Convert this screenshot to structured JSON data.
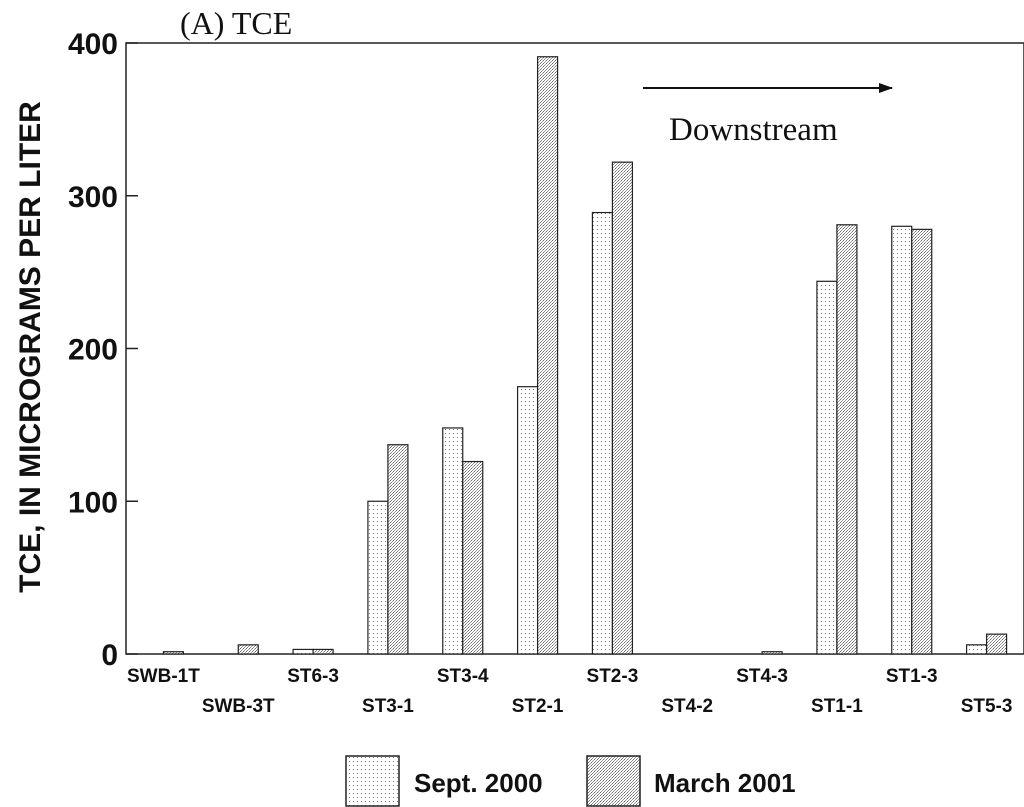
{
  "chart_data": {
    "type": "bar",
    "title": "(A) TCE",
    "ylabel": "TCE, IN MICROGRAMS PER LITER",
    "xlabel": "",
    "ylim": [
      0,
      400
    ],
    "yticks": [
      0,
      100,
      200,
      300,
      400
    ],
    "categories": [
      "SWB-1T",
      "SWB-3T",
      "ST6-3",
      "ST3-1",
      "ST3-4",
      "ST2-1",
      "ST2-3",
      "ST4-2",
      "ST4-3",
      "ST1-1",
      "ST1-3",
      "ST5-3"
    ],
    "series": [
      {
        "name": "Sept. 2000",
        "values": [
          0,
          0,
          3,
          100,
          148,
          175,
          289,
          0,
          0,
          244,
          280,
          6
        ]
      },
      {
        "name": "March 2001",
        "values": [
          1.5,
          6,
          3,
          137,
          126,
          391,
          322,
          0,
          1.5,
          281,
          278,
          13
        ]
      }
    ],
    "annotation": "Downstream",
    "legend_position": "bottom-center",
    "grid": false
  }
}
